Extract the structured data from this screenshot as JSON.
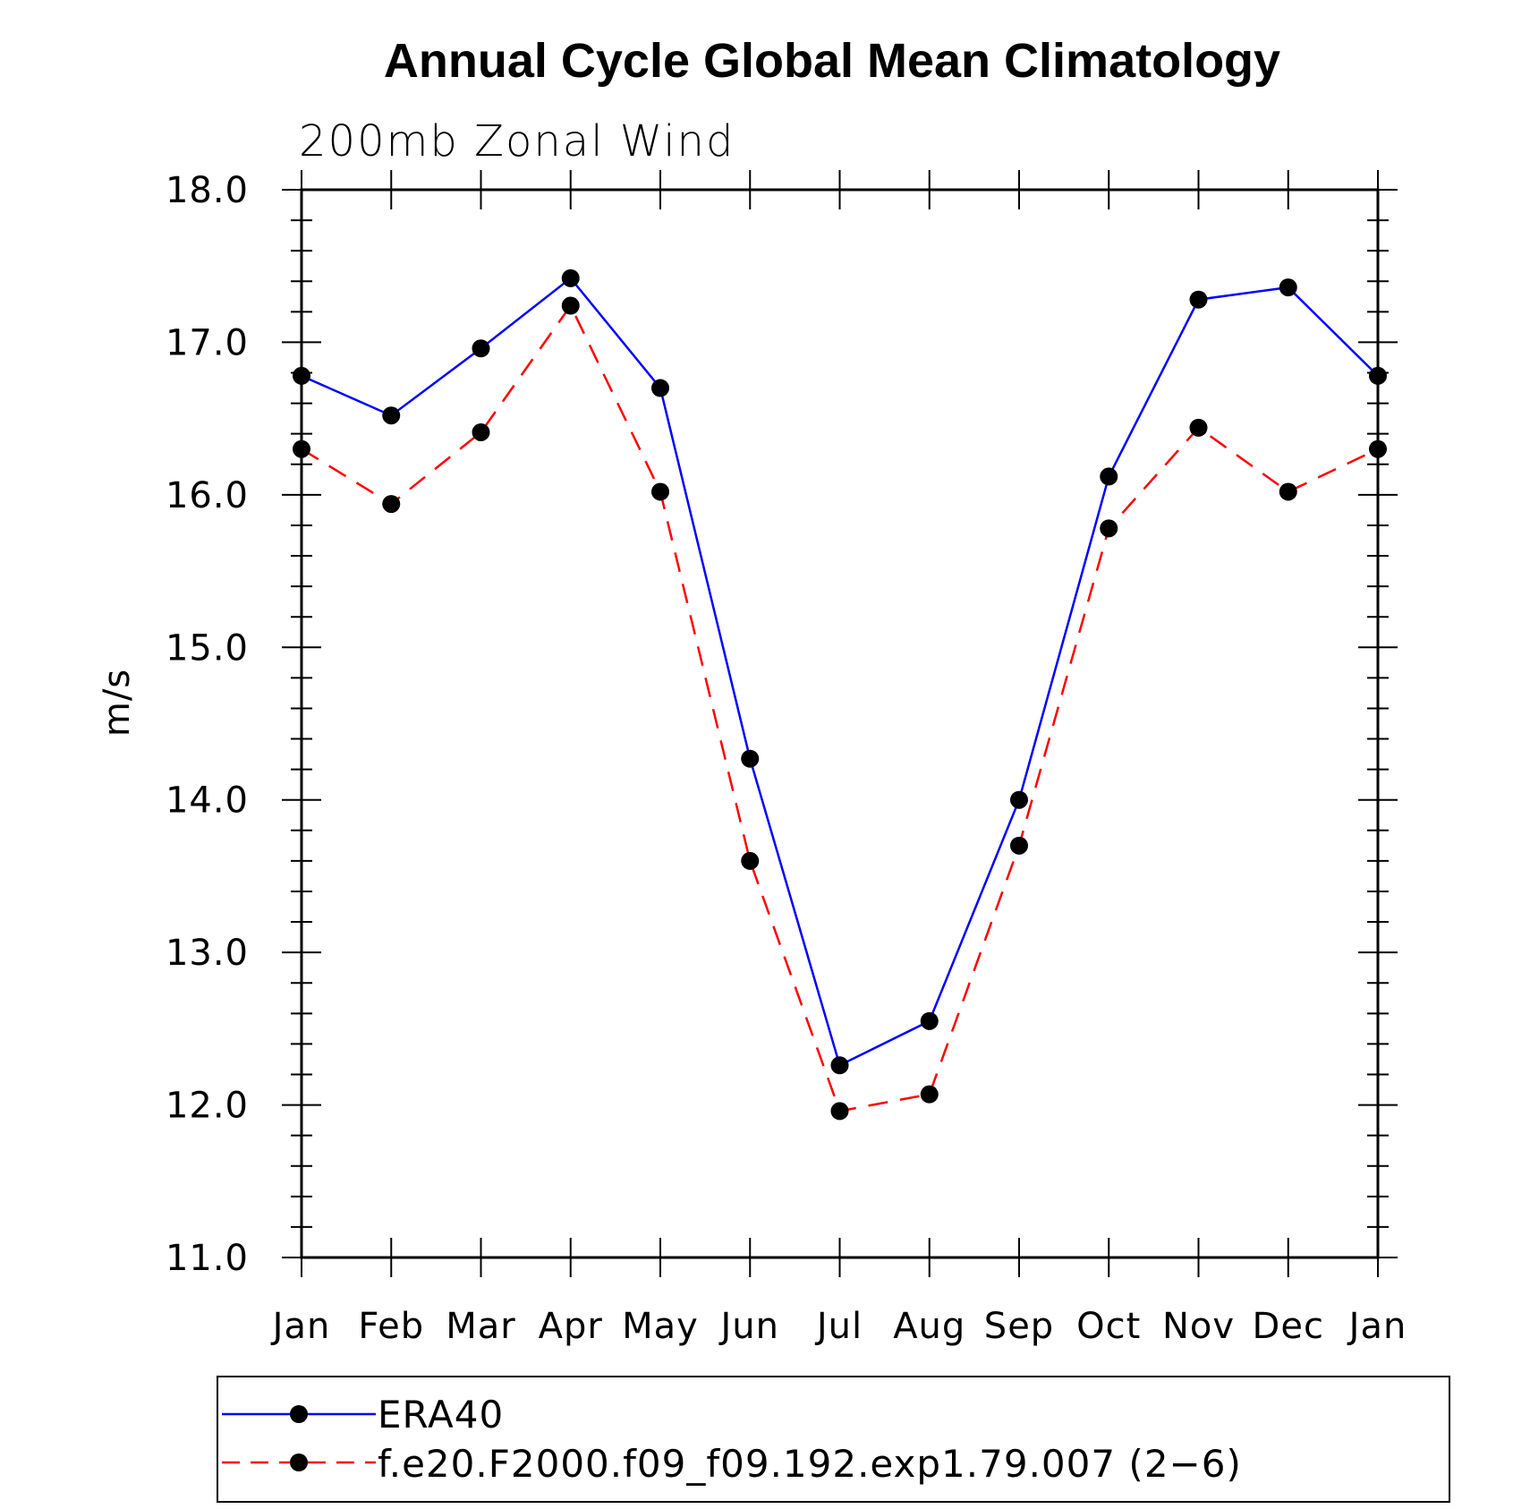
{
  "chart_data": {
    "type": "line",
    "title": "Annual Cycle Global Mean Climatology",
    "subtitle": "200mb Zonal Wind",
    "xlabel": "",
    "ylabel": "m/s",
    "categories": [
      "Jan",
      "Feb",
      "Mar",
      "Apr",
      "May",
      "Jun",
      "Jul",
      "Aug",
      "Sep",
      "Oct",
      "Nov",
      "Dec",
      "Jan"
    ],
    "ylim": [
      11.0,
      18.0
    ],
    "yticks": [
      "11.0",
      "12.0",
      "13.0",
      "14.0",
      "15.0",
      "16.0",
      "17.0",
      "18.0"
    ],
    "series": [
      {
        "name": "ERA40",
        "color": "#0000ff",
        "dash": "solid",
        "marker": "filled-circle",
        "values": [
          16.78,
          16.52,
          16.96,
          17.42,
          16.7,
          14.27,
          12.26,
          12.55,
          14.0,
          16.12,
          17.28,
          17.36,
          16.78
        ]
      },
      {
        "name": "f.e20.F2000.f09_f09.192.exp1.79.007 (2−6)",
        "color": "#ff0000",
        "dash": "dashed",
        "marker": "filled-circle",
        "values": [
          16.3,
          15.94,
          16.41,
          17.24,
          16.02,
          13.6,
          11.96,
          12.07,
          13.7,
          15.78,
          16.44,
          16.02,
          16.3
        ]
      }
    ],
    "grid": false,
    "legend_position": "bottom"
  }
}
